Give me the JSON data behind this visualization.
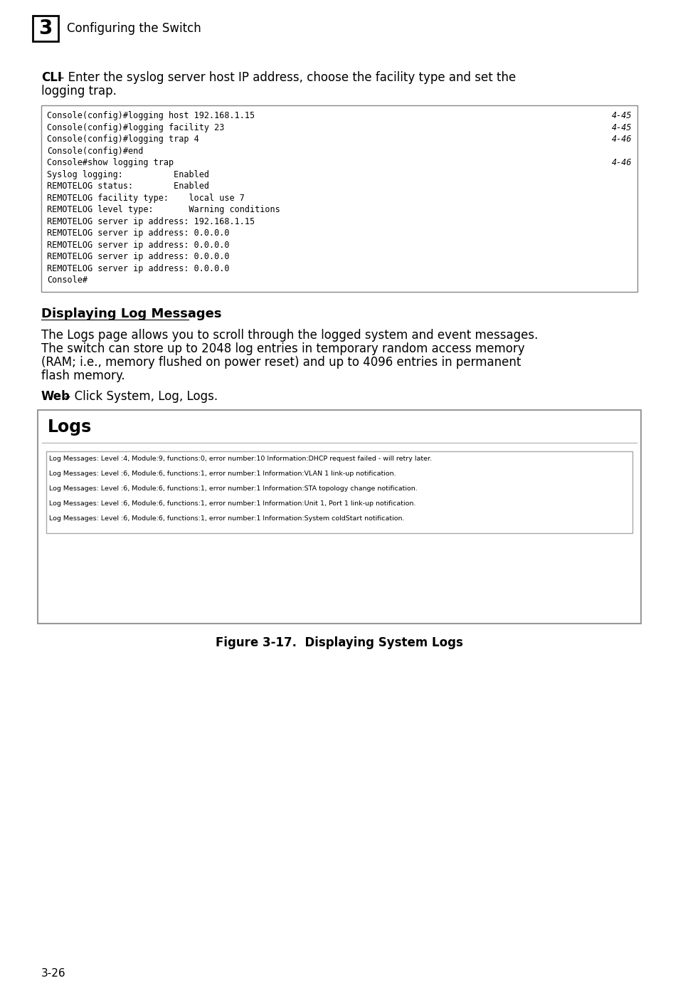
{
  "page_bg": "#ffffff",
  "page_number": "3-26",
  "chapter_number": "3",
  "chapter_title": "Configuring the Switch",
  "code_block_lines": [
    [
      "Console(config)#logging host 192.168.1.15",
      "4-45"
    ],
    [
      "Console(config)#logging facility 23",
      "4-45"
    ],
    [
      "Console(config)#logging trap 4",
      "4-46"
    ],
    [
      "Console(config)#end",
      ""
    ],
    [
      "Console#show logging trap",
      "4-46"
    ],
    [
      "Syslog logging:          Enabled",
      ""
    ],
    [
      "REMOTELOG status:        Enabled",
      ""
    ],
    [
      "REMOTELOG facility type:    local use 7",
      ""
    ],
    [
      "REMOTELOG level type:       Warning conditions",
      ""
    ],
    [
      "REMOTELOG server ip address: 192.168.1.15",
      ""
    ],
    [
      "REMOTELOG server ip address: 0.0.0.0",
      ""
    ],
    [
      "REMOTELOG server ip address: 0.0.0.0",
      ""
    ],
    [
      "REMOTELOG server ip address: 0.0.0.0",
      ""
    ],
    [
      "REMOTELOG server ip address: 0.0.0.0",
      ""
    ],
    [
      "Console#",
      ""
    ]
  ],
  "section_title": "Displaying Log Messages",
  "body_text_lines": [
    "The Logs page allows you to scroll through the logged system and event messages.",
    "The switch can store up to 2048 log entries in temporary random access memory",
    "(RAM; i.e., memory flushed on power reset) and up to 4096 entries in permanent",
    "flash memory."
  ],
  "logs_panel_title": "Logs",
  "log_entries": [
    "Log Messages: Level :4, Module:9, functions:0, error number:10 Information:DHCP request failed - will retry later.",
    "Log Messages: Level :6, Module:6, functions:1, error number:1 Information:VLAN 1 link-up notification.",
    "Log Messages: Level :6, Module:6, functions:1, error number:1 Information:STA topology change notification.",
    "Log Messages: Level :6, Module:6, functions:1, error number:1 Information:Unit 1, Port 1 link-up notification.",
    "Log Messages: Level :6, Module:6, functions:1, error number:1 Information:System coldStart notification."
  ],
  "figure_caption": "Figure 3-17.  Displaying System Logs"
}
